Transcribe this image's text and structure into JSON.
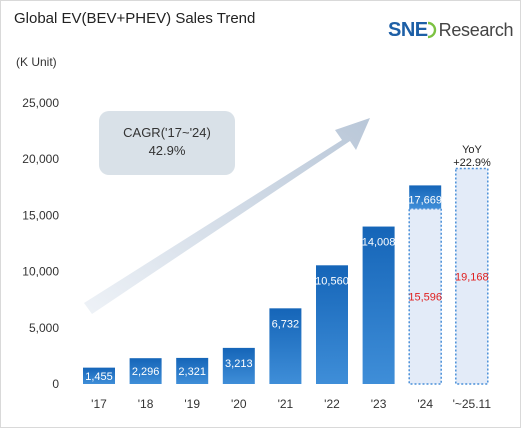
{
  "header": {
    "title": "Global EV(BEV+PHEV) Sales Trend",
    "unit": "(K Unit)",
    "logo_sne": "SNE",
    "logo_research": "Research"
  },
  "annotation": {
    "cagr_label": "CAGR('17~'24)",
    "cagr_value": "42.9%",
    "yoy_label": "YoY",
    "yoy_value": "+22.9%"
  },
  "colors": {
    "bar_dark": "#1565b8",
    "bar_light": "#3f8ed8",
    "partial_fill": "#e3ebf8",
    "partial_border": "#4a90d9",
    "partial_label": "#e02020",
    "arrow": "#c8d4e2",
    "cagr_box": "#d9e1e8"
  },
  "chart_data": {
    "type": "bar",
    "categories": [
      "'17",
      "'18",
      "'19",
      "'20",
      "'21",
      "'22",
      "'23",
      "'24",
      "'~25.11"
    ],
    "values": [
      1455,
      2296,
      2321,
      3213,
      6732,
      10560,
      14008,
      17669,
      19168
    ],
    "value_labels": [
      "1,455",
      "2,296",
      "2,321",
      "3,213",
      "6,732",
      "10,560",
      "14,008",
      "17,669",
      "19,168"
    ],
    "partial_values": [
      null,
      null,
      null,
      null,
      null,
      null,
      null,
      15596,
      null
    ],
    "partial_labels": [
      null,
      null,
      null,
      null,
      null,
      null,
      null,
      "15,596",
      null
    ],
    "ylim": [
      0,
      25000
    ],
    "yticks": [
      0,
      5000,
      10000,
      15000,
      20000,
      25000
    ],
    "ytick_labels": [
      "0",
      "5,000",
      "10,000",
      "15,000",
      "20,000",
      "25,000"
    ],
    "grid": false
  }
}
